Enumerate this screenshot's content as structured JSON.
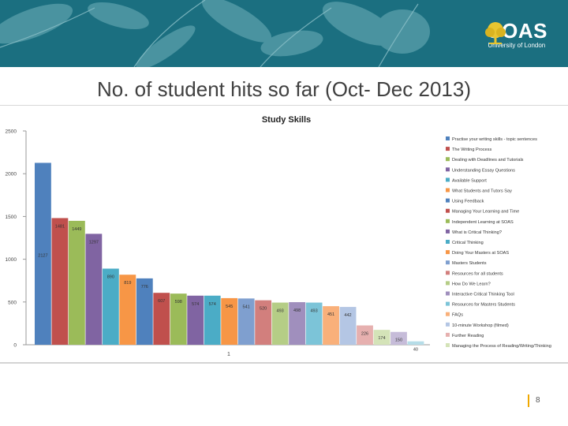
{
  "header": {
    "logo_name": "SOAS",
    "logo_sub": "University of London",
    "banner_color": "#1b6f80"
  },
  "slide": {
    "title": "No. of student hits so far (Oct- Dec 2013)",
    "page_number": "8"
  },
  "chart_data": {
    "type": "bar",
    "title": "Study Skills",
    "xlabel": "",
    "ylabel": "",
    "categories": [
      "1"
    ],
    "ylim": [
      0,
      2500
    ],
    "yticks": [
      0,
      500,
      1000,
      1500,
      2000,
      2500
    ],
    "grid": false,
    "legend_position": "right",
    "series": [
      {
        "name": "Practise your writing skills - topic sentences",
        "values": [
          2127
        ],
        "color": "#4f81bd"
      },
      {
        "name": "The Writing Process",
        "values": [
          1481
        ],
        "color": "#c0504d"
      },
      {
        "name": "Dealing with Deadlines and Tutorials",
        "values": [
          1449
        ],
        "color": "#9bbb59"
      },
      {
        "name": "Understanding Essay Questions",
        "values": [
          1297
        ],
        "color": "#8064a2"
      },
      {
        "name": "Available Support",
        "values": [
          890
        ],
        "color": "#4bacc6"
      },
      {
        "name": "What Students and Tutors Say",
        "values": [
          819
        ],
        "color": "#f79646"
      },
      {
        "name": "Using Feedback",
        "values": [
          776
        ],
        "color": "#4f81bd"
      },
      {
        "name": "Managing Your Learning and Time",
        "values": [
          607
        ],
        "color": "#c0504d"
      },
      {
        "name": "Independent Learning at SOAS",
        "values": [
          598
        ],
        "color": "#9bbb59"
      },
      {
        "name": "What is Critical Thinking?",
        "values": [
          574
        ],
        "color": "#8064a2"
      },
      {
        "name": "Critical Thinking",
        "values": [
          574
        ],
        "color": "#4bacc6"
      },
      {
        "name": "Doing Your Masters at SOAS",
        "values": [
          545
        ],
        "color": "#f79646"
      },
      {
        "name": "Masters Students",
        "values": [
          541
        ],
        "color": "#7f9fcf"
      },
      {
        "name": "Resources for all students",
        "values": [
          520
        ],
        "color": "#d27f7d"
      },
      {
        "name": "How Do We Learn?",
        "values": [
          493
        ],
        "color": "#b5cd86"
      },
      {
        "name": "Interactive Critical Thinking Tool",
        "values": [
          498
        ],
        "color": "#a08fbd"
      },
      {
        "name": "Resources for Masters Students",
        "values": [
          493
        ],
        "color": "#7cc4d8"
      },
      {
        "name": "FAQs",
        "values": [
          451
        ],
        "color": "#f9b07a"
      },
      {
        "name": "10-minute Workshop (filmed)",
        "values": [
          442
        ],
        "color": "#b4c6e4"
      },
      {
        "name": "Further Reading",
        "values": [
          226
        ],
        "color": "#e6b0af"
      },
      {
        "name": "Managing the Process of Reading/Writing/Thinking",
        "values": [
          174
        ],
        "color": "#d4e3b8"
      },
      {
        "name": "",
        "values": [
          150
        ],
        "color": "#c6bcd9"
      },
      {
        "name": "",
        "values": [
          40
        ],
        "color": "#b6dde8"
      }
    ]
  }
}
